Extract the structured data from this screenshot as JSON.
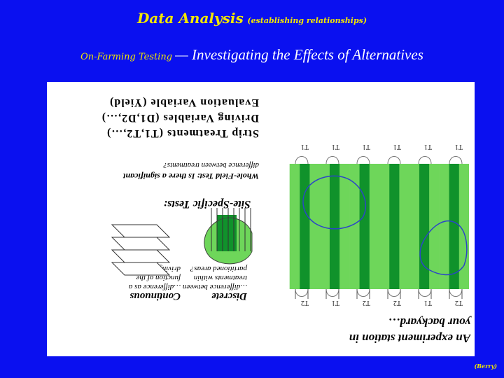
{
  "header": {
    "title": "Data Analysis",
    "title_note": "(establishing relationships)",
    "subtitle_lead": "On-Farming Testing",
    "subtitle_text": "— Investigating the Effects of Alternatives"
  },
  "diagram": {
    "experiment_label_line1": "An experiment station in",
    "experiment_label_line2": "your backyard…",
    "discrete_heading": "Discrete",
    "discrete_line1": "…difference between",
    "discrete_line2": "treatments within",
    "discrete_line3": "partitioned areas?",
    "continuous_heading": "Continuous",
    "continuous_line1": "…difference as a",
    "continuous_line2": "function of the",
    "continuous_line3": "driving variables?",
    "site_specific_title": "Site-Specific Tests:",
    "whole_field_line1": "Whole-Field Test: Is there a significant",
    "whole_field_line2": "difference between treatments?",
    "strip_line1": "Strip Treatments (T1,T2,…)",
    "strip_line2": "Driving Variables (D1,D2,…)",
    "strip_line3": "Evaluation Variable (Yield)",
    "treatment_labels_top": [
      "T2",
      "T1",
      "T2",
      "T2",
      "T1",
      "T2"
    ],
    "treatment_labels_bottom": [
      "T1",
      "T1",
      "T1",
      "T1",
      "T1",
      "T1"
    ],
    "colors": {
      "background": "#0a10f0",
      "title": "#f2e600",
      "strip_light": "#6ed65a",
      "strip_dark": "#10922b",
      "boundary": "#2b45c8"
    }
  },
  "footer": {
    "credit": "(Berry)"
  }
}
